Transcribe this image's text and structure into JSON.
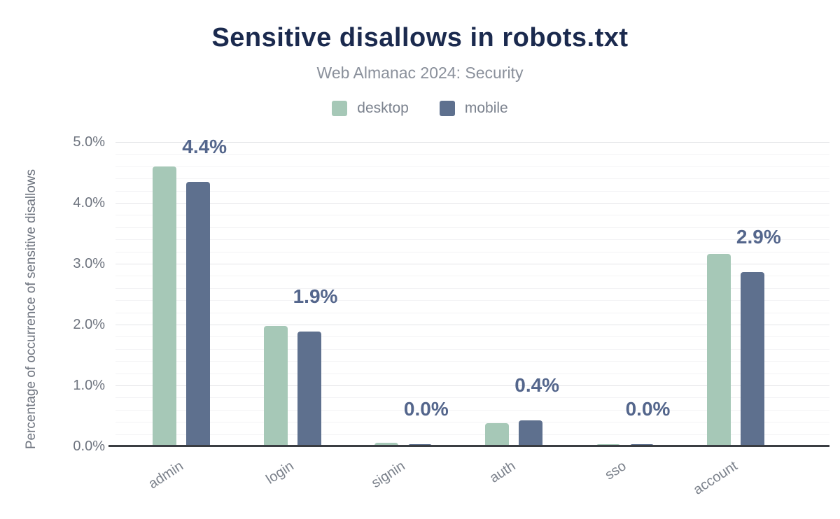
{
  "header": {
    "title": "Sensitive disallows in robots.txt",
    "subtitle": "Web Almanac 2024: Security"
  },
  "legend": {
    "items": [
      {
        "label": "desktop",
        "color": "#a6c8b7"
      },
      {
        "label": "mobile",
        "color": "#5e708e"
      }
    ]
  },
  "chart_data": {
    "type": "bar",
    "title": "Sensitive disallows in robots.txt",
    "subtitle": "Web Almanac 2024: Security",
    "categories": [
      "admin",
      "login",
      "signin",
      "auth",
      "sso",
      "account"
    ],
    "series": [
      {
        "name": "desktop",
        "color": "#a6c8b7",
        "values": [
          4.6,
          1.98,
          0.06,
          0.38,
          0.03,
          3.16
        ]
      },
      {
        "name": "mobile",
        "color": "#5e708e",
        "values": [
          4.35,
          1.88,
          0.03,
          0.43,
          0.03,
          2.86
        ]
      }
    ],
    "bar_labels": [
      "4.4%",
      "1.9%",
      "0.0%",
      "0.4%",
      "0.0%",
      "2.9%"
    ],
    "xlabel": "",
    "ylabel": "Percentage of occurrence of sensitive disallows",
    "ylim": [
      0,
      5
    ],
    "y_ticks": [
      "0.0%",
      "1.0%",
      "2.0%",
      "3.0%",
      "4.0%",
      "5.0%"
    ],
    "y_tick_values": [
      0,
      1,
      2,
      3,
      4,
      5
    ],
    "grid": {
      "minor_step": 0.2,
      "major_step": 1.0,
      "major_color": "#e4e5e8",
      "minor_color": "#f3f3f5"
    },
    "legend_position": "top",
    "colors": {
      "title": "#1b2a4e",
      "subtitle": "#8a909b",
      "bar_label": "#54668c",
      "axis_line": "#3a3d42",
      "tick_text": "#6d737e",
      "category_text": "#7a808a"
    }
  }
}
